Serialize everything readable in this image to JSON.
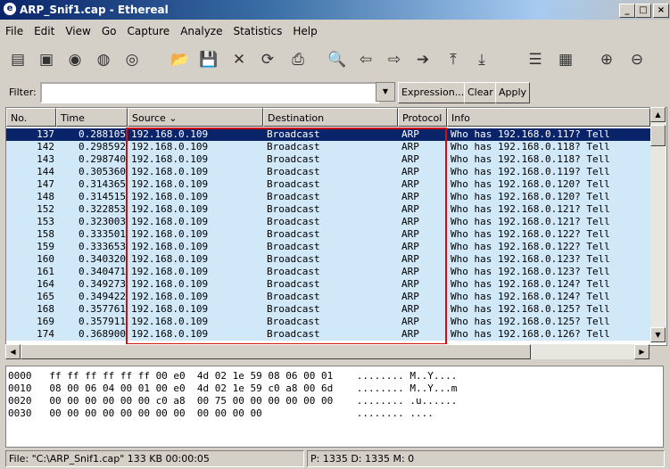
{
  "window": {
    "title": "ARP_Snif1.cap - Ethereal",
    "min": "_",
    "max": "□",
    "close": "×"
  },
  "menu": [
    "File",
    "Edit",
    "View",
    "Go",
    "Capture",
    "Analyze",
    "Statistics",
    "Help"
  ],
  "toolbar": [
    {
      "icon": "interfaces-icon",
      "g": "▤"
    },
    {
      "icon": "capture-options-icon",
      "g": "▣"
    },
    {
      "icon": "start-capture-icon",
      "g": "◉"
    },
    {
      "icon": "stop-capture-icon",
      "g": "◍"
    },
    {
      "icon": "restart-capture-icon",
      "g": "◎"
    },
    {
      "icon": "open-icon",
      "g": "📂"
    },
    {
      "icon": "save-icon",
      "g": "💾"
    },
    {
      "icon": "close-icon",
      "g": "✕"
    },
    {
      "icon": "reload-icon",
      "g": "⟳"
    },
    {
      "icon": "print-icon",
      "g": "⎙"
    },
    {
      "icon": "find-icon",
      "g": "🔍"
    },
    {
      "icon": "back-icon",
      "g": "⇦"
    },
    {
      "icon": "forward-icon",
      "g": "⇨"
    },
    {
      "icon": "go-to-icon",
      "g": "➔"
    },
    {
      "icon": "first-packet-icon",
      "g": "⤒"
    },
    {
      "icon": "last-packet-icon",
      "g": "⤓"
    },
    {
      "icon": "colorize-icon",
      "g": "☰"
    },
    {
      "icon": "autoscroll-icon",
      "g": "▦"
    },
    {
      "icon": "zoom-in-icon",
      "g": "⊕"
    },
    {
      "icon": "zoom-out-icon",
      "g": "⊖"
    }
  ],
  "filter": {
    "label": "Filter:",
    "value": "",
    "expression": "Expression...",
    "clear": "Clear",
    "apply": "Apply"
  },
  "columns": [
    "No.",
    "Time",
    "Source ⌄",
    "Destination",
    "Protocol",
    "Info"
  ],
  "packets": [
    [
      "137",
      "0.288105",
      "192.168.0.109",
      "Broadcast",
      "ARP",
      "Who has 192.168.0.117?  Tell"
    ],
    [
      "142",
      "0.298592",
      "192.168.0.109",
      "Broadcast",
      "ARP",
      "Who has 192.168.0.118?  Tell"
    ],
    [
      "143",
      "0.298740",
      "192.168.0.109",
      "Broadcast",
      "ARP",
      "Who has 192.168.0.118?  Tell"
    ],
    [
      "144",
      "0.305360",
      "192.168.0.109",
      "Broadcast",
      "ARP",
      "Who has 192.168.0.119?  Tell"
    ],
    [
      "147",
      "0.314365",
      "192.168.0.109",
      "Broadcast",
      "ARP",
      "Who has 192.168.0.120?  Tell"
    ],
    [
      "148",
      "0.314515",
      "192.168.0.109",
      "Broadcast",
      "ARP",
      "Who has 192.168.0.120?  Tell"
    ],
    [
      "152",
      "0.322853",
      "192.168.0.109",
      "Broadcast",
      "ARP",
      "Who has 192.168.0.121?  Tell"
    ],
    [
      "153",
      "0.323003",
      "192.168.0.109",
      "Broadcast",
      "ARP",
      "Who has 192.168.0.121?  Tell"
    ],
    [
      "158",
      "0.333501",
      "192.168.0.109",
      "Broadcast",
      "ARP",
      "Who has 192.168.0.122?  Tell"
    ],
    [
      "159",
      "0.333653",
      "192.168.0.109",
      "Broadcast",
      "ARP",
      "Who has 192.168.0.122?  Tell"
    ],
    [
      "160",
      "0.340320",
      "192.168.0.109",
      "Broadcast",
      "ARP",
      "Who has 192.168.0.123?  Tell"
    ],
    [
      "161",
      "0.340471",
      "192.168.0.109",
      "Broadcast",
      "ARP",
      "Who has 192.168.0.123?  Tell"
    ],
    [
      "164",
      "0.349273",
      "192.168.0.109",
      "Broadcast",
      "ARP",
      "Who has 192.168.0.124?  Tell"
    ],
    [
      "165",
      "0.349422",
      "192.168.0.109",
      "Broadcast",
      "ARP",
      "Who has 192.168.0.124?  Tell"
    ],
    [
      "168",
      "0.357761",
      "192.168.0.109",
      "Broadcast",
      "ARP",
      "Who has 192.168.0.125?  Tell"
    ],
    [
      "169",
      "0.357911",
      "192.168.0.109",
      "Broadcast",
      "ARP",
      "Who has 192.168.0.125?  Tell"
    ],
    [
      "174",
      "0.368900",
      "192.168.0.109",
      "Broadcast",
      "ARP",
      "Who has 192.168.0.126?  Tell"
    ]
  ],
  "selected_packet": "137",
  "hex": [
    "0000   ff ff ff ff ff ff 00 e0  4d 02 1e 59 08 06 00 01    ........ M..Y....",
    "0010   08 00 06 04 00 01 00 e0  4d 02 1e 59 c0 a8 00 6d    ........ M..Y...m",
    "0020   00 00 00 00 00 00 c0 a8  00 75 00 00 00 00 00 00    ........ .u......",
    "0030   00 00 00 00 00 00 00 00  00 00 00 00                ........ ...."
  ],
  "status": {
    "file": "File: \"C:\\ARP_Snif1.cap\" 133 KB 00:00:05",
    "packets": "P: 1335 D: 1335 M: 0"
  },
  "colors": {
    "row": "#d0e8f8",
    "selected": "#0a246a",
    "highlight_box": "#d01010"
  }
}
